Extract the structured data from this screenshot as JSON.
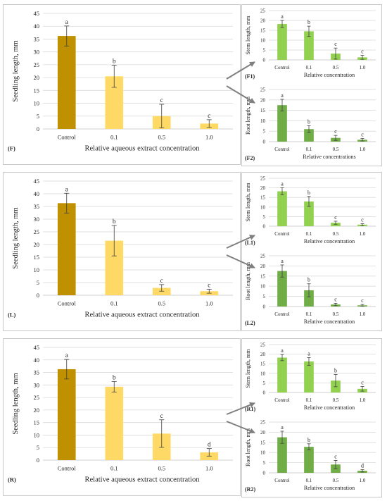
{
  "figure": {
    "arrow_color": "#7f7f7f",
    "colors": {
      "main_control": "#bf9000",
      "main_treat": "#ffd966",
      "stem_bar": "#92d050",
      "root_bar": "#70ad47",
      "grid": "#d9d9d9",
      "axis": "#bfbfbf",
      "error": "#404040"
    }
  },
  "chart_data": [
    {
      "id": "F",
      "panel_label": "(F)",
      "type": "bar",
      "categories": [
        "Control",
        "0.1",
        "0.5",
        "1.0"
      ],
      "values": [
        36.2,
        20.5,
        5.0,
        2.1
      ],
      "errors": [
        3.9,
        4.3,
        4.6,
        1.5
      ],
      "letters": [
        "a",
        "b",
        "c",
        "c"
      ],
      "ylabel": "Seedling length, mm",
      "xlabel": "Relative aqueous extract concentration",
      "ylim": [
        0,
        45
      ],
      "yticks": [
        0,
        5,
        10,
        15,
        20,
        25,
        30,
        35,
        40,
        45
      ],
      "grid": true,
      "legend": "none"
    },
    {
      "id": "F1",
      "panel_label": "(F1)",
      "type": "bar",
      "categories": [
        "Control",
        "0.1",
        "0.5",
        "1.0"
      ],
      "values": [
        18.2,
        14.5,
        3.2,
        1.3
      ],
      "errors": [
        1.8,
        2.6,
        2.8,
        1.0
      ],
      "letters": [
        "a",
        "b",
        "c",
        "c"
      ],
      "ylabel": "Stem length, mm",
      "xlabel": "Relative concentration",
      "ylim": [
        0,
        25
      ],
      "yticks": [
        0,
        5,
        10,
        15,
        20,
        25
      ],
      "grid": true,
      "legend": "none"
    },
    {
      "id": "F2",
      "panel_label": "(F2)",
      "type": "bar",
      "categories": [
        "Control",
        "0.1",
        "0.5",
        "1.0"
      ],
      "values": [
        17.5,
        6.0,
        1.8,
        0.9
      ],
      "errors": [
        2.8,
        1.6,
        1.2,
        0.6
      ],
      "letters": [
        "a",
        "b",
        "c",
        "c"
      ],
      "ylabel": "Root length, mm",
      "xlabel": "Relative concentrations",
      "ylim": [
        0,
        25
      ],
      "yticks": [
        0,
        5,
        10,
        15,
        20,
        25
      ],
      "grid": true,
      "legend": "none"
    },
    {
      "id": "L",
      "panel_label": "(L)",
      "type": "bar",
      "categories": [
        "Control",
        "0.1",
        "0.5",
        "1.0"
      ],
      "values": [
        36.3,
        21.5,
        2.9,
        1.6
      ],
      "errors": [
        3.9,
        6.0,
        1.3,
        0.8
      ],
      "letters": [
        "a",
        "b",
        "c",
        "c"
      ],
      "ylabel": "Seedling length, mm",
      "xlabel": "Relative aqueous extract concentration",
      "ylim": [
        0,
        45
      ],
      "yticks": [
        0,
        5,
        10,
        15,
        20,
        25,
        30,
        35,
        40,
        45
      ],
      "grid": true,
      "legend": "none"
    },
    {
      "id": "L1",
      "panel_label": "(L1)",
      "type": "bar",
      "categories": [
        "Control",
        "0.1",
        "0.5",
        "1.0"
      ],
      "values": [
        18.2,
        12.9,
        1.8,
        0.8
      ],
      "errors": [
        1.8,
        2.6,
        0.8,
        0.5
      ],
      "letters": [
        "a",
        "b",
        "c",
        "c"
      ],
      "ylabel": "Stem length, mm",
      "xlabel": "Relative concentration",
      "ylim": [
        0,
        25
      ],
      "yticks": [
        0,
        5,
        10,
        15,
        20,
        25
      ],
      "grid": true,
      "legend": "none"
    },
    {
      "id": "L2",
      "panel_label": "(L2)",
      "type": "bar",
      "categories": [
        "Control",
        "0.1",
        "0.5",
        "1.0"
      ],
      "values": [
        17.5,
        8.0,
        1.0,
        0.6
      ],
      "errors": [
        3.0,
        3.2,
        0.6,
        0.4
      ],
      "letters": [
        "a",
        "b",
        "c",
        "c"
      ],
      "ylabel": "Root length, mm",
      "xlabel": "Relative concentration",
      "ylim": [
        0,
        25
      ],
      "yticks": [
        0,
        5,
        10,
        15,
        20,
        25
      ],
      "grid": true,
      "legend": "none"
    },
    {
      "id": "R",
      "panel_label": "(R)",
      "type": "bar",
      "categories": [
        "Control",
        "0.1",
        "0.5",
        "1.0"
      ],
      "values": [
        36.3,
        29.3,
        10.6,
        3.1
      ],
      "errors": [
        3.9,
        2.1,
        5.5,
        1.5
      ],
      "letters": [
        "a",
        "b",
        "c",
        "d"
      ],
      "ylabel": "Seedling length, mm",
      "xlabel": "Relative aqueous extract concentration",
      "ylim": [
        0,
        45
      ],
      "yticks": [
        0,
        5,
        10,
        15,
        20,
        25,
        30,
        35,
        40,
        45
      ],
      "grid": true,
      "legend": "none"
    },
    {
      "id": "R1",
      "panel_label": "(R1)",
      "type": "bar",
      "categories": [
        "Control",
        "0.1",
        "0.5",
        "1.0"
      ],
      "values": [
        18.2,
        16.2,
        6.2,
        1.9
      ],
      "errors": [
        1.6,
        2.0,
        3.2,
        1.2
      ],
      "letters": [
        "a",
        "a",
        "b",
        "c"
      ],
      "ylabel": "Stem length, mm",
      "xlabel": "Relative concentration",
      "ylim": [
        0,
        25
      ],
      "yticks": [
        0,
        5,
        10,
        15,
        20,
        25
      ],
      "grid": true,
      "legend": "none"
    },
    {
      "id": "R2",
      "panel_label": "(R2)",
      "type": "bar",
      "categories": [
        "Control",
        "0.1",
        "0.5",
        "1.0"
      ],
      "values": [
        17.5,
        12.8,
        4.1,
        1.0
      ],
      "errors": [
        3.0,
        1.5,
        2.0,
        0.6
      ],
      "letters": [
        "a",
        "b",
        "c",
        "d"
      ],
      "ylabel": "Root length, mm",
      "xlabel": "Relative concentration",
      "ylim": [
        0,
        25
      ],
      "yticks": [
        0,
        5,
        10,
        15,
        20,
        25
      ],
      "grid": true,
      "legend": "none"
    }
  ]
}
